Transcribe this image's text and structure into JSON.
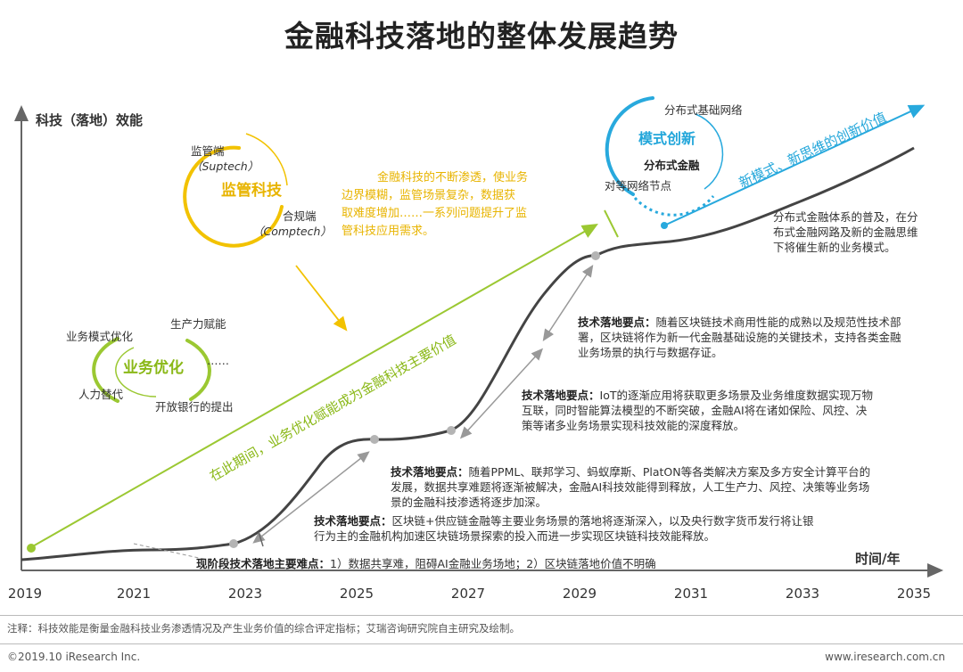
{
  "title": "金融科技落地的整体发展趋势",
  "y_axis_label": "科技（落地）效能",
  "x_axis_label": "时间/年",
  "x_ticks": [
    "2019",
    "2021",
    "2023",
    "2025",
    "2027",
    "2029",
    "2031",
    "2033",
    "2035"
  ],
  "supervision": {
    "title": "监管科技",
    "top_label": "监管端",
    "top_sub": "（Suptech）",
    "right_label": "合规端",
    "right_sub": "（Comptech）"
  },
  "business": {
    "title": "业务优化",
    "items": [
      "业务模式优化",
      "生产力赋能",
      "……",
      "人力替代",
      "开放银行的提出"
    ]
  },
  "model": {
    "title": "模式创新",
    "center": "分布式金融",
    "top": "分布式基础网络",
    "left": "对等网络节点"
  },
  "yellow_text": [
    "金融科技的不断渗透，使业务",
    "边界模糊，监管场景复杂，数据获",
    "取难度增加……一系列问题提升了监",
    "管科技应用需求。"
  ],
  "green_arrow_text": "在此期间，业务优化赋能成为金融科技主要价值",
  "blue_arrow_text": "新模式、新思维的创新价值",
  "distributed_text": [
    "分布式金融体系的普及，在分",
    "布式金融网路及新的金融思维",
    "下将催生新的业务模式。"
  ],
  "points": [
    {
      "label": "技术落地要点：",
      "lines": [
        "随着区块链技术商用性能的成熟以及规范性技术部",
        "署，区块链将作为新一代金融基础设施的关键技术，支持各类金融",
        "业务场景的执行与数据存证。"
      ]
    },
    {
      "label": "技术落地要点：",
      "lines": [
        "IoT的逐渐应用将获取更多场景及业务维度数据实现万物",
        "互联，同时智能算法模型的不断突破，金融AI将在诸如保险、风控、决",
        "策等诸多业务场景实现科技效能的深度释放。"
      ]
    },
    {
      "label": "技术落地要点：",
      "lines": [
        "随着PPML、联邦学习、蚂蚁摩斯、PlatON等各类解决方案及多方安全计算平台的",
        "发展，数据共享难题将逐渐被解决，金融AI科技效能得到释放，人工生产力、风控、决策等业务场",
        "景的金融科技渗透将逐步加深。"
      ]
    },
    {
      "label": "技术落地要点：",
      "lines": [
        "区块链+供应链金融等主要业务场景的落地将逐渐深入，以及央行数字货币发行将让银",
        "行为主的金融机构加速区块链场景探索的投入而进一步实现区块链科技效能释放。"
      ]
    }
  ],
  "difficulty_label": "现阶段技术落地主要难点：",
  "difficulty_text": "1）数据共享难，阻碍AI金融业务场地；2）区块链落地价值不明确",
  "footnote": "注释：科技效能是衡量金融科技业务渗透情况及产生业务价值的综合评定指标；艾瑞咨询研究院自主研究及绘制。",
  "copyright": "©2019.10 iResearch Inc.",
  "website": "www.iresearch.com.cn",
  "colors": {
    "yellow": "#f2c200",
    "green": "#9bc832",
    "blue": "#28a9dd",
    "curve": "#444444",
    "dot": "#b4b4b4"
  }
}
